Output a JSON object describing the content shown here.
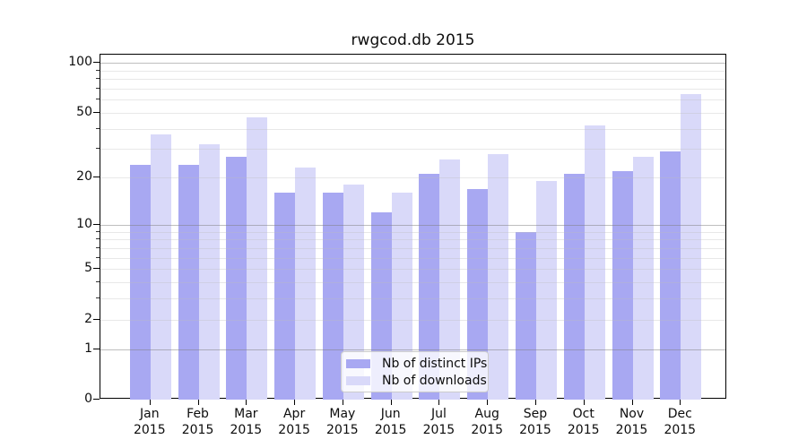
{
  "chart_data": {
    "type": "bar",
    "title": "rwgcod.db 2015",
    "categories": [
      "Jan",
      "Feb",
      "Mar",
      "Apr",
      "May",
      "Jun",
      "Jul",
      "Aug",
      "Sep",
      "Oct",
      "Nov",
      "Dec"
    ],
    "category_year": "2015",
    "series": [
      {
        "name": "Nb of distinct IPs",
        "color": "#a8a8f2",
        "values": [
          24,
          24,
          27,
          16,
          16,
          12,
          21,
          17,
          9,
          21,
          22,
          29
        ]
      },
      {
        "name": "Nb of downloads",
        "color": "#d9d9f9",
        "values": [
          37,
          32,
          47,
          23,
          18,
          16,
          26,
          28,
          19,
          42,
          27,
          65
        ]
      }
    ],
    "y_scale": "log1p",
    "y_ticks": [
      0,
      1,
      2,
      5,
      10,
      20,
      50,
      100
    ],
    "y_major_gridlines": [
      1,
      10,
      100
    ],
    "y_minor_ticks": [
      3,
      4,
      6,
      7,
      8,
      9,
      30,
      40,
      60,
      70,
      80,
      90
    ],
    "ylim": [
      0,
      112
    ],
    "grid": true,
    "legend_position": "lower center"
  }
}
